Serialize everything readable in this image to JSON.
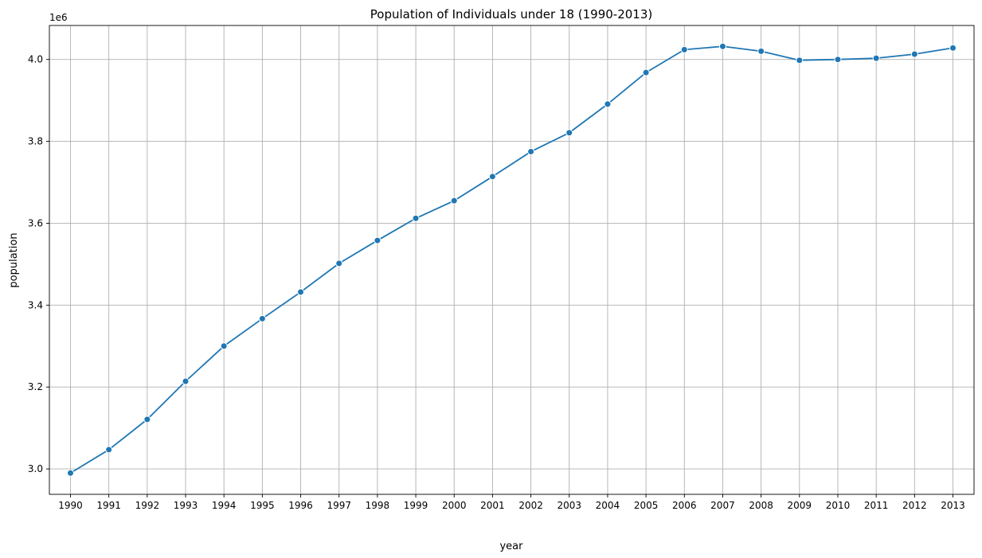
{
  "chart_data": {
    "type": "line",
    "title": "Population of Individuals under 18 (1990-2013)",
    "xlabel": "year",
    "ylabel": "population",
    "y_offset_label": "1e6",
    "grid": true,
    "marker": "circle",
    "colors": {
      "line": "#1f77b4",
      "grid": "#b0b0b0",
      "axes": "#000000"
    },
    "x": [
      1990,
      1991,
      1992,
      1993,
      1994,
      1995,
      1996,
      1997,
      1998,
      1999,
      2000,
      2001,
      2002,
      2003,
      2004,
      2005,
      2006,
      2007,
      2008,
      2009,
      2010,
      2011,
      2012,
      2013
    ],
    "x_tick_labels": [
      "1990",
      "1991",
      "1992",
      "1993",
      "1994",
      "1995",
      "1996",
      "1997",
      "1998",
      "1999",
      "2000",
      "2001",
      "2002",
      "2003",
      "2004",
      "2005",
      "2006",
      "2007",
      "2008",
      "2009",
      "2010",
      "2011",
      "2012",
      "2013"
    ],
    "xlim": [
      1989.45,
      2013.55
    ],
    "series": [
      {
        "values": [
          2.99,
          3.047,
          3.121,
          3.214,
          3.3,
          3.367,
          3.432,
          3.502,
          3.558,
          3.612,
          3.655,
          3.714,
          3.775,
          3.821,
          3.891,
          3.968,
          4.024,
          4.032,
          4.02,
          3.998,
          4.0,
          4.003,
          4.013,
          4.028
        ]
      }
    ],
    "y_ticks": [
      3.0,
      3.2,
      3.4,
      3.6,
      3.8,
      4.0
    ],
    "y_tick_labels": [
      "3.0",
      "3.2",
      "3.4",
      "3.6",
      "3.8",
      "4.0"
    ],
    "ylim": [
      2.938,
      4.083
    ]
  }
}
